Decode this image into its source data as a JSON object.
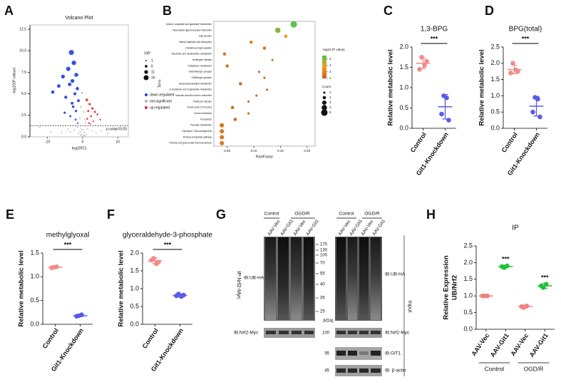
{
  "chart_data": [
    {
      "type": "scatter",
      "label": "A",
      "title": "Volcano Plot",
      "xlabel": "log2|FC|",
      "ylabel": "-log10(P-value)",
      "xlim": [
        -15,
        13
      ],
      "xticks": [
        -10,
        0,
        10
      ],
      "ylim": [
        0,
        13
      ],
      "yticks": [
        {
          "value": 0,
          "label": "0.0"
        },
        2.5,
        {
          "value": 5,
          "label": "5.0"
        },
        7.5,
        {
          "value": 10,
          "label": "10.0"
        },
        12.5
      ],
      "threshold": 1.3,
      "threshold_label": "p-value=0.05",
      "size_legend_title": "VIP",
      "size_ticks": [
        1,
        6,
        11,
        16
      ],
      "series": [
        {
          "name": "down-regulated",
          "color": "#1f3fd8",
          "x": [
            -3.2,
            -2.5,
            -4.1,
            -1.8,
            -5.6,
            -2.9,
            -3.7,
            -1.5,
            -6.8,
            -2.2,
            -4.8,
            -1.2,
            -3.0,
            -2.7,
            -8.5,
            -1.9,
            -5.1,
            -3.5,
            -2.0,
            -1.4
          ],
          "values": [
            9.8,
            8.6,
            7.9,
            7.2,
            7.0,
            6.5,
            6.1,
            5.6,
            5.9,
            5.0,
            4.6,
            4.2,
            3.9,
            3.5,
            5.2,
            3.0,
            2.8,
            2.4,
            2.0,
            1.6
          ],
          "sizes": [
            16,
            14,
            13,
            12,
            11,
            11,
            10,
            9,
            10,
            8,
            8,
            7,
            7,
            6,
            9,
            5,
            5,
            4,
            3,
            2
          ]
        },
        {
          "name": "not-significant",
          "color": "#b5b5b5",
          "x": [
            -0.5,
            0.3,
            -0.8,
            0.6,
            -0.2,
            0.9,
            -1.5,
            1.4,
            -2.4,
            2.6,
            -3.5,
            3.8,
            -0.4,
            0.2,
            -0.7,
            0.5,
            -1.1,
            1.1,
            -4.2,
            5.3,
            -12.3,
            -6.0,
            7.2,
            -0.3,
            0.4,
            -0.6,
            0.7,
            -9.0,
            9.5,
            0.1
          ],
          "values": [
            3.5,
            2.9,
            2.2,
            2.0,
            5.1,
            1.7,
            1.1,
            0.9,
            0.8,
            0.7,
            0.6,
            0.5,
            0.9,
            0.8,
            0.6,
            0.5,
            0.4,
            0.3,
            0.9,
            0.7,
            1.1,
            0.5,
            0.4,
            0.3,
            0.2,
            0.2,
            0.1,
            0.6,
            0.8,
            0.1
          ],
          "sizes": [
            2,
            2,
            1,
            1,
            3,
            1,
            1,
            1,
            1,
            1,
            1,
            1,
            1,
            1,
            1,
            1,
            1,
            1,
            1,
            1,
            1,
            1,
            1,
            1,
            1,
            1,
            1,
            1,
            1,
            1
          ]
        },
        {
          "name": "up-regulated",
          "color": "#e02828",
          "x": [
            1.2,
            2.0,
            2.8,
            1.6,
            3.5,
            4.2,
            2.4,
            1.3,
            5.0,
            3.0,
            1.8,
            2.2
          ],
          "values": [
            4.3,
            3.8,
            3.3,
            3.0,
            2.9,
            2.6,
            2.4,
            2.1,
            2.0,
            1.8,
            1.6,
            1.5
          ],
          "sizes": [
            6,
            5,
            5,
            4,
            4,
            3,
            3,
            3,
            2,
            2,
            2,
            1
          ]
        }
      ]
    },
    {
      "type": "bubble",
      "label": "B",
      "xlabel": "RichFactor",
      "ylabel": "Term",
      "categories": [
        "Alanine, aspartate and glutamate metabolism",
        "Neuroactive ligand-receptor interaction",
        "Gap junction",
        "Vitamin digestion and absorption",
        "Oxidative phosphorylation",
        "Nicotinate and nicotinamide metabolism",
        "Huntington disease",
        "Glutathione metabolism",
        "Glutamatergic synapse",
        "GABAergic synapse",
        "Glycerophospholipid metabolism",
        "D-Glutamine and D-glutamate metabolism",
        "Vascular smooth muscle contraction",
        "Parkinson disease",
        "Citrate cycle (TCA cycle)",
        "Insulin resistance",
        "Ferroptosis",
        "Pyruvate metabolism",
        "Glycolysis / Gluconeogenesis",
        "Pentose phosphate pathway",
        "Pentose and glucuronate interconversions"
      ],
      "values": [
        0.175,
        0.145,
        0.16,
        0.095,
        0.12,
        0.045,
        0.135,
        0.05,
        0.11,
        0.12,
        0.075,
        0.125,
        0.105,
        0.09,
        0.06,
        0.09,
        0.065,
        0.04,
        0.04,
        0.04,
        0.04
      ],
      "counts": [
        5,
        4,
        2,
        2,
        2,
        2,
        1,
        2,
        1,
        1,
        2,
        1,
        1,
        1,
        2,
        1,
        2,
        3,
        3,
        3,
        3
      ],
      "pvalues": [
        4.5,
        4.0,
        2.5,
        2.0,
        1.5,
        1.5,
        1.2,
        1.5,
        1.1,
        1.1,
        1.3,
        1.1,
        1.1,
        1.0,
        1.3,
        1.0,
        1.2,
        1.7,
        1.7,
        1.7,
        1.7
      ],
      "xlim": [
        0.025,
        0.215
      ],
      "xticks": [
        0.05,
        {
          "value": 0.1,
          "label": "0.10"
        },
        0.15,
        {
          "value": 0.2,
          "label": "0.20"
        }
      ],
      "color_legend_title": "-log10 (P value)",
      "color_scale": [
        "#c8641e",
        "#e8a020",
        "#5cc04a"
      ],
      "colorlim": [
        1,
        4.5
      ],
      "color_ticks": [
        1,
        2,
        3,
        4
      ],
      "size_legend_title": "Count",
      "size_ticks": [
        1,
        2,
        3,
        4,
        5
      ]
    },
    {
      "type": "dot",
      "label": "C",
      "title": "1,3-BPG",
      "ylabel": "Relative metabolic level",
      "significance": "***",
      "ylim": [
        0,
        2
      ],
      "yticks": [
        {
          "value": 0,
          "label": "0.0"
        },
        0.5,
        {
          "value": 1,
          "label": "1.0"
        },
        1.5,
        {
          "value": 2,
          "label": "2.0"
        }
      ],
      "groups": [
        {
          "name": "Control",
          "color": "#f28b8b",
          "values": [
            1.75,
            1.55,
            1.45,
            1.65
          ],
          "mean": 1.6,
          "sd": 0.13
        },
        {
          "name": "Git1-Knockdown",
          "color": "#5b5be8",
          "values": [
            0.8,
            0.75,
            0.35,
            0.2
          ],
          "mean": 0.53,
          "sd": 0.3
        }
      ]
    },
    {
      "type": "dot",
      "label": "D",
      "title": "BPG(total)",
      "ylabel": "Relative metabolic level",
      "significance": "***",
      "ylim": [
        0,
        2.5
      ],
      "yticks": [
        {
          "value": 0,
          "label": "0.0"
        },
        0.5,
        {
          "value": 1,
          "label": "1.0"
        },
        1.5,
        {
          "value": 2,
          "label": "2.0"
        },
        2.5
      ],
      "groups": [
        {
          "name": "Control",
          "color": "#f28b8b",
          "values": [
            2.0,
            1.8,
            1.7,
            1.75
          ],
          "mean": 1.81,
          "sd": 0.13
        },
        {
          "name": "Git1-Knockdown",
          "color": "#5b5be8",
          "values": [
            0.95,
            0.9,
            0.5,
            0.35
          ],
          "mean": 0.68,
          "sd": 0.3
        }
      ]
    },
    {
      "type": "dot",
      "label": "E",
      "title": "methylglyoxal",
      "ylabel": "Relative metabolic level",
      "significance": "***",
      "ylim": [
        0,
        1.5
      ],
      "yticks": [
        {
          "value": 0,
          "label": "0.0"
        },
        0.5,
        {
          "value": 1,
          "label": "1.0"
        },
        1.5
      ],
      "groups": [
        {
          "name": "Control",
          "color": "#f28b8b",
          "values": [
            1.2,
            1.21,
            1.19
          ],
          "mean": 1.2,
          "sd": 0.02
        },
        {
          "name": "Git1-Knockdown",
          "color": "#5b5be8",
          "values": [
            0.18,
            0.2,
            0.17
          ],
          "mean": 0.18,
          "sd": 0.02
        }
      ]
    },
    {
      "type": "dot",
      "label": "F",
      "title": "glyceraldehyde-3-phosphate",
      "ylabel": "Relative metabolic level",
      "significance": "***",
      "ylim": [
        0,
        2
      ],
      "yticks": [
        {
          "value": 0,
          "label": "0.0"
        },
        0.5,
        {
          "value": 1,
          "label": "1.0"
        },
        1.5,
        {
          "value": 2,
          "label": "2.0"
        }
      ],
      "groups": [
        {
          "name": "Control",
          "color": "#f28b8b",
          "values": [
            1.85,
            1.7,
            1.8,
            1.75
          ],
          "mean": 1.78,
          "sd": 0.08
        },
        {
          "name": "Git1-Knockdown",
          "color": "#5b5be8",
          "values": [
            0.85,
            0.78,
            0.8,
            0.82
          ],
          "mean": 0.81,
          "sd": 0.04
        }
      ]
    },
    {
      "type": "dot",
      "label": "H",
      "title": "IP",
      "ylabel": [
        "Relative Expression",
        "UB/Nrf2"
      ],
      "ylim": [
        0,
        2.5
      ],
      "yticks": [
        {
          "value": 0,
          "label": "0.0"
        },
        0.5,
        {
          "value": 1,
          "label": "1.0"
        },
        1.5,
        {
          "value": 2,
          "label": "2.0"
        },
        2.5
      ],
      "treatments": [
        {
          "name": "Control",
          "groups": [
            {
              "name": "AAV-Vec",
              "color": "#f28080",
              "values": [
                1.0,
                1.0,
                1.0
              ],
              "mean": 1.0,
              "sd": 0.02
            },
            {
              "name": "AAV-Git1",
              "color": "#22c03a",
              "values": [
                1.85,
                1.9,
                1.88
              ],
              "mean": 1.88,
              "sd": 0.04,
              "significance": "***"
            }
          ]
        },
        {
          "name": "OGD/R",
          "groups": [
            {
              "name": "AAV-Vec",
              "color": "#f28080",
              "values": [
                0.65,
                0.7,
                0.68
              ],
              "mean": 0.68,
              "sd": 0.04
            },
            {
              "name": "AAV-Git1",
              "color": "#22c03a",
              "values": [
                1.25,
                1.35,
                1.3
              ],
              "mean": 1.3,
              "sd": 0.07,
              "significance": "***"
            }
          ]
        }
      ]
    }
  ],
  "western_blot": {
    "label": "G",
    "ip_label": "IP:Nrf2-Myc",
    "input_label": "Input",
    "ip": {
      "groups": [
        "Control",
        "OGD/R"
      ],
      "lanes": [
        "AAV-Vec",
        "AAV-Git1",
        "AAV-Vec",
        "AAV-Git1"
      ],
      "blots": [
        "IB:UB-HA",
        "IB:Nrf2-Myc"
      ]
    },
    "input": {
      "groups": [
        "Control",
        "OGD/R"
      ],
      "lanes": [
        "AAV-Vec",
        "AAV-Git1",
        "AAV-Vec",
        "AAV-Git1"
      ],
      "blots": [
        "IB:UB-HA",
        "IB:Nrf2-Myc",
        "IB:GIT1",
        "IB: β-actin"
      ]
    },
    "markers": [
      170,
      130,
      100,
      70,
      55,
      40,
      35,
      25
    ],
    "marker_unit": "(kDa)",
    "input_markers": [
      100,
      95,
      45
    ]
  }
}
